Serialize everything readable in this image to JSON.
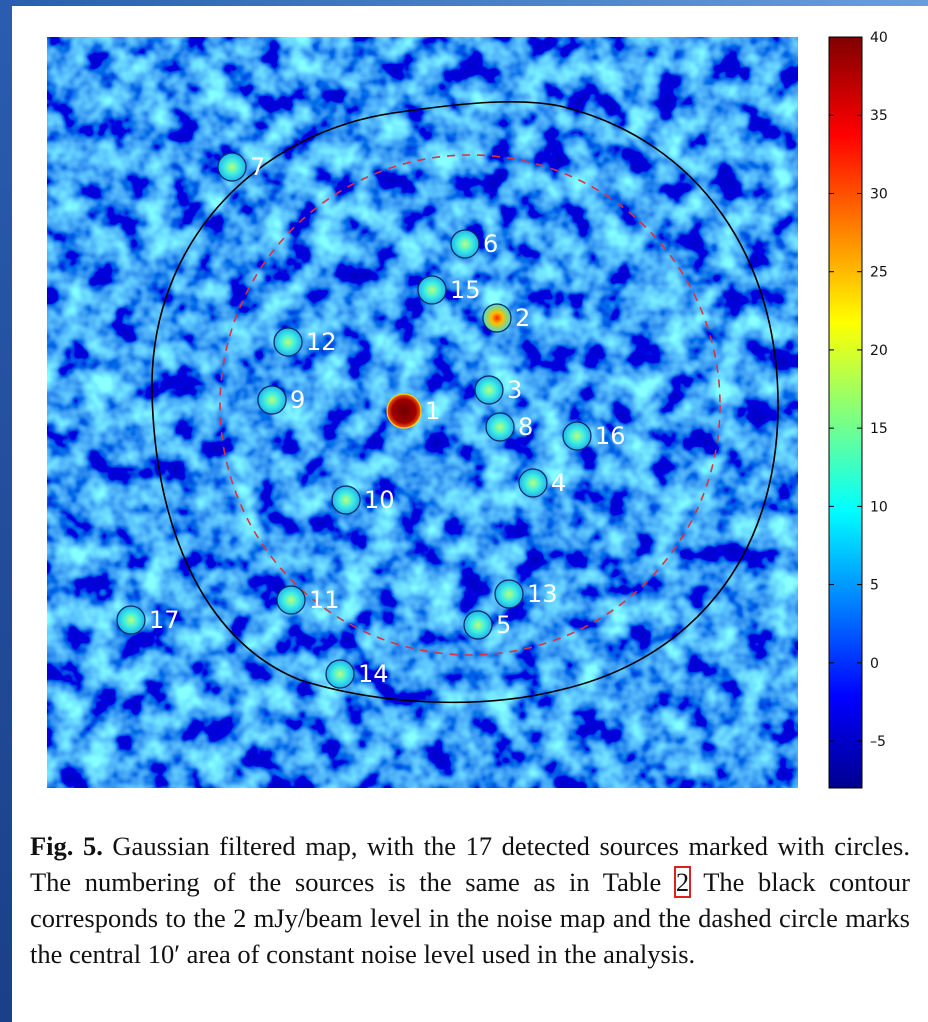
{
  "figure": {
    "sources": [
      {
        "label": "1"
      },
      {
        "label": "2"
      },
      {
        "label": "3"
      },
      {
        "label": "4"
      },
      {
        "label": "5"
      },
      {
        "label": "6"
      },
      {
        "label": "7"
      },
      {
        "label": "8"
      },
      {
        "label": "9"
      },
      {
        "label": "10"
      },
      {
        "label": "11"
      },
      {
        "label": "12"
      },
      {
        "label": "13"
      },
      {
        "label": "14"
      },
      {
        "label": "15"
      },
      {
        "label": "16"
      },
      {
        "label": "17"
      }
    ],
    "colorbar": {
      "lim": [
        -8,
        40
      ],
      "ticks": [
        {
          "value": -5,
          "label": "–5"
        },
        0,
        5,
        10,
        15,
        20,
        25,
        30,
        35,
        40
      ]
    },
    "caption": {
      "label": "Fig. 5.",
      "text_before": "Gaussian filtered map, with the 17 detected sources marked with circles. The numbering of the sources is the same as in Table",
      "table_ref": "2",
      "text_after": "The black contour corresponds to the 2 mJy/beam level in the noise map and the dashed circle marks the central 10′ area of constant noise level used in the analysis."
    }
  }
}
